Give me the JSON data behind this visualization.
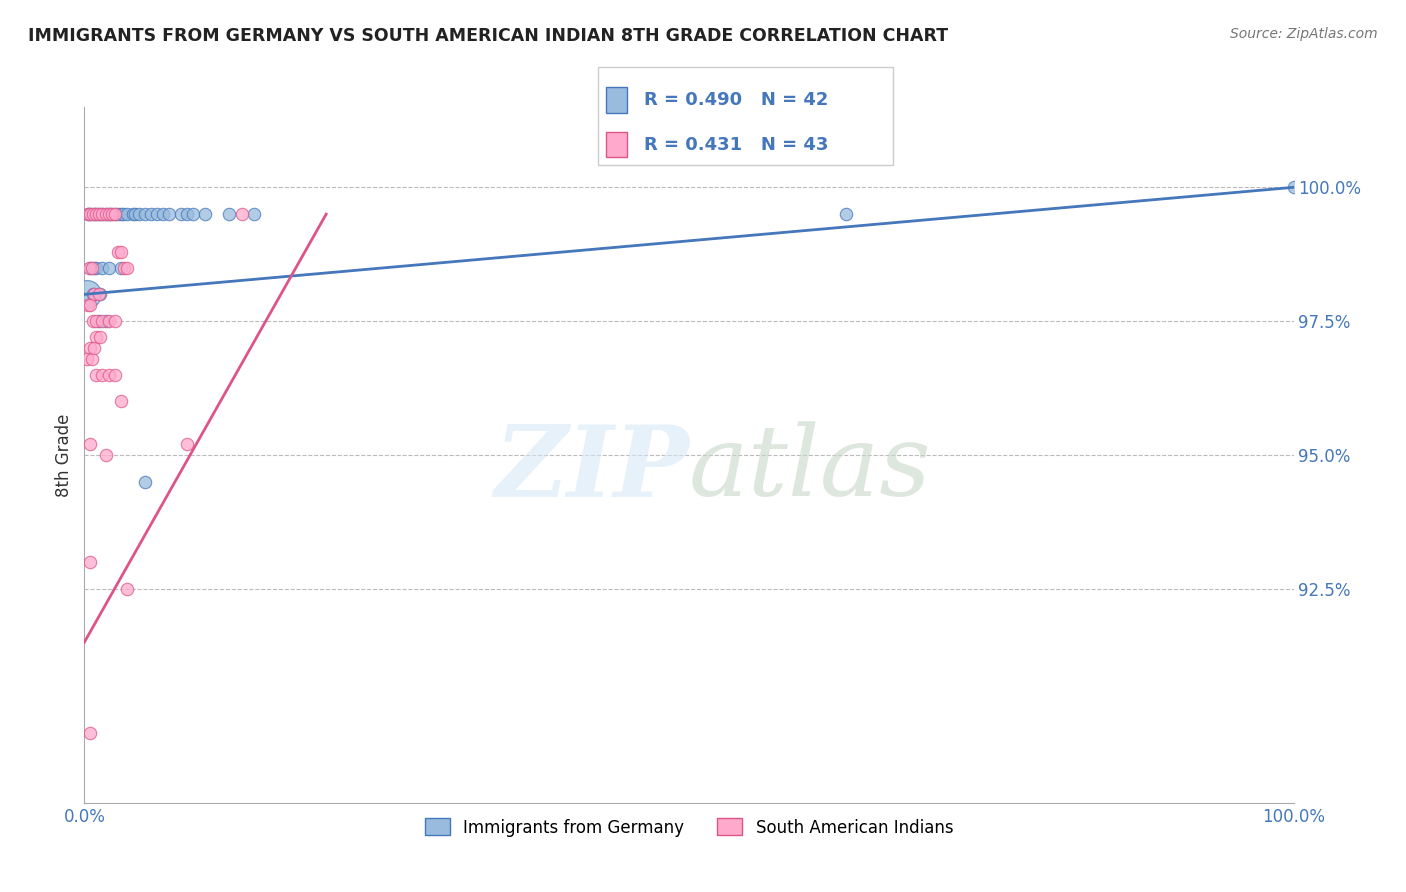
{
  "title": "IMMIGRANTS FROM GERMANY VS SOUTH AMERICAN INDIAN 8TH GRADE CORRELATION CHART",
  "source": "Source: ZipAtlas.com",
  "ylabel": "8th Grade",
  "xlim": [
    0.0,
    100.0
  ],
  "ylim": [
    88.5,
    101.5
  ],
  "blue_R": 0.49,
  "blue_N": 42,
  "pink_R": 0.431,
  "pink_N": 43,
  "blue_color": "#99BBDD",
  "pink_color": "#FFAACC",
  "blue_edge_color": "#4477BB",
  "pink_edge_color": "#DD5588",
  "blue_line_color": "#4477BB",
  "pink_line_color": "#DD5588",
  "legend_label_blue": "Immigrants from Germany",
  "legend_label_pink": "South American Indians",
  "ytick_vals": [
    92.5,
    95.0,
    97.5,
    100.0
  ],
  "ytick_labels": [
    "92.5%",
    "95.0%",
    "97.5%",
    "100.0%"
  ],
  "blue_line_x0": 0.0,
  "blue_line_y0": 98.0,
  "blue_line_x1": 100.0,
  "blue_line_y1": 100.0,
  "pink_line_x0": 0.0,
  "pink_line_y0": 91.5,
  "pink_line_x1": 20.0,
  "pink_line_y1": 99.5,
  "blue_points_x": [
    0.3,
    0.5,
    0.8,
    1.0,
    1.2,
    1.5,
    1.8,
    2.0,
    2.2,
    2.5,
    2.8,
    3.0,
    3.2,
    3.5,
    4.0,
    4.2,
    4.5,
    5.0,
    5.5,
    6.0,
    6.5,
    7.0,
    8.0,
    8.5,
    9.0,
    10.0,
    12.0,
    14.0,
    0.5,
    0.8,
    1.0,
    1.5,
    2.0,
    3.0,
    0.2,
    0.7,
    1.3,
    5.0,
    63.0,
    100.0,
    1.2,
    1.8
  ],
  "blue_points_y": [
    99.5,
    99.5,
    99.5,
    99.5,
    99.5,
    99.5,
    99.5,
    99.5,
    99.5,
    99.5,
    99.5,
    99.5,
    99.5,
    99.5,
    99.5,
    99.5,
    99.5,
    99.5,
    99.5,
    99.5,
    99.5,
    99.5,
    99.5,
    99.5,
    99.5,
    99.5,
    99.5,
    99.5,
    98.5,
    98.5,
    98.5,
    98.5,
    98.5,
    98.5,
    98.0,
    98.0,
    98.0,
    94.5,
    99.5,
    100.0,
    97.5,
    97.5
  ],
  "blue_sizes": [
    80,
    80,
    80,
    80,
    80,
    80,
    80,
    80,
    80,
    80,
    80,
    80,
    80,
    80,
    80,
    80,
    80,
    80,
    80,
    80,
    80,
    80,
    80,
    80,
    80,
    80,
    80,
    80,
    80,
    80,
    80,
    80,
    80,
    80,
    400,
    80,
    80,
    80,
    80,
    80,
    80,
    80
  ],
  "pink_points_x": [
    0.3,
    0.5,
    0.7,
    1.0,
    1.2,
    1.5,
    1.8,
    2.0,
    2.3,
    2.5,
    2.8,
    3.0,
    3.3,
    3.5,
    0.4,
    0.6,
    0.8,
    1.2,
    0.3,
    0.5,
    0.7,
    1.0,
    1.5,
    2.0,
    2.5,
    0.5,
    1.0,
    0.2,
    0.6,
    1.0,
    1.5,
    2.0,
    2.5,
    3.0,
    0.8,
    1.3,
    8.5,
    13.0,
    3.5,
    0.5,
    1.8,
    0.5,
    0.5
  ],
  "pink_points_y": [
    99.5,
    99.5,
    99.5,
    99.5,
    99.5,
    99.5,
    99.5,
    99.5,
    99.5,
    99.5,
    98.8,
    98.8,
    98.5,
    98.5,
    98.5,
    98.5,
    98.0,
    98.0,
    97.8,
    97.8,
    97.5,
    97.5,
    97.5,
    97.5,
    97.5,
    97.0,
    97.2,
    96.8,
    96.8,
    96.5,
    96.5,
    96.5,
    96.5,
    96.0,
    97.0,
    97.2,
    95.2,
    99.5,
    92.5,
    95.2,
    95.0,
    93.0,
    89.8
  ]
}
